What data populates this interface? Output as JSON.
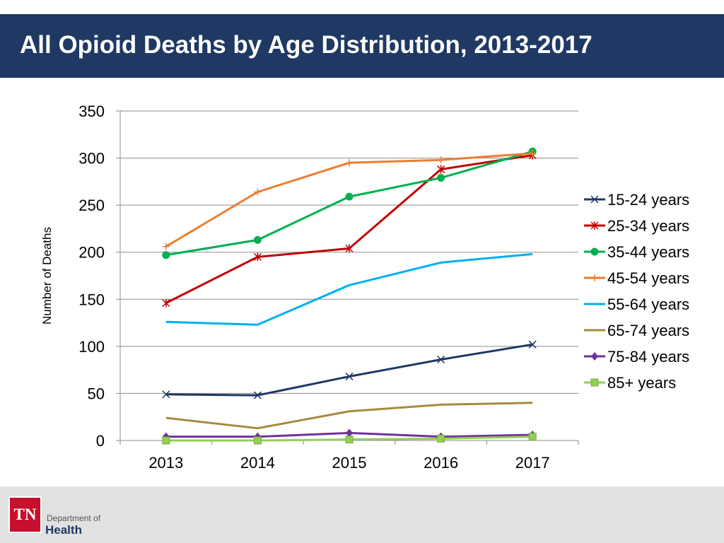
{
  "slide": {
    "title": "All Opioid Deaths by Age Distribution, 2013-2017"
  },
  "footer": {
    "logo_text": "TN",
    "org_line1": "Department of",
    "org_line2": "Health"
  },
  "chart_data": {
    "type": "line",
    "title": "",
    "xlabel": "",
    "ylabel": "Number of Deaths",
    "categories": [
      "2013",
      "2014",
      "2015",
      "2016",
      "2017"
    ],
    "ylim": [
      0,
      350
    ],
    "yticks": [
      0,
      50,
      100,
      150,
      200,
      250,
      300,
      350
    ],
    "grid": true,
    "legend_position": "right",
    "series": [
      {
        "name": "15-24 years",
        "values": [
          49,
          48,
          68,
          86,
          102
        ],
        "color": "#1f3864",
        "marker": "x"
      },
      {
        "name": "25-34 years",
        "values": [
          146,
          195,
          204,
          288,
          303
        ],
        "color": "#c00000",
        "marker": "star"
      },
      {
        "name": "35-44 years",
        "values": [
          197,
          213,
          259,
          279,
          307
        ],
        "color": "#00b050",
        "marker": "circle"
      },
      {
        "name": "45-54 years",
        "values": [
          206,
          264,
          295,
          298,
          305
        ],
        "color": "#ed7d31",
        "marker": "plus"
      },
      {
        "name": "55-64 years",
        "values": [
          126,
          123,
          165,
          189,
          198
        ],
        "color": "#00b0f0",
        "marker": "none"
      },
      {
        "name": "65-74 years",
        "values": [
          24,
          13,
          31,
          38,
          40
        ],
        "color": "#a68a3d",
        "marker": "none"
      },
      {
        "name": "75-84 years",
        "values": [
          4,
          4,
          8,
          4,
          6
        ],
        "color": "#7030a0",
        "marker": "diamond"
      },
      {
        "name": "85+ years",
        "values": [
          0,
          0,
          1,
          2,
          4
        ],
        "color": "#92d050",
        "marker": "square"
      }
    ]
  }
}
